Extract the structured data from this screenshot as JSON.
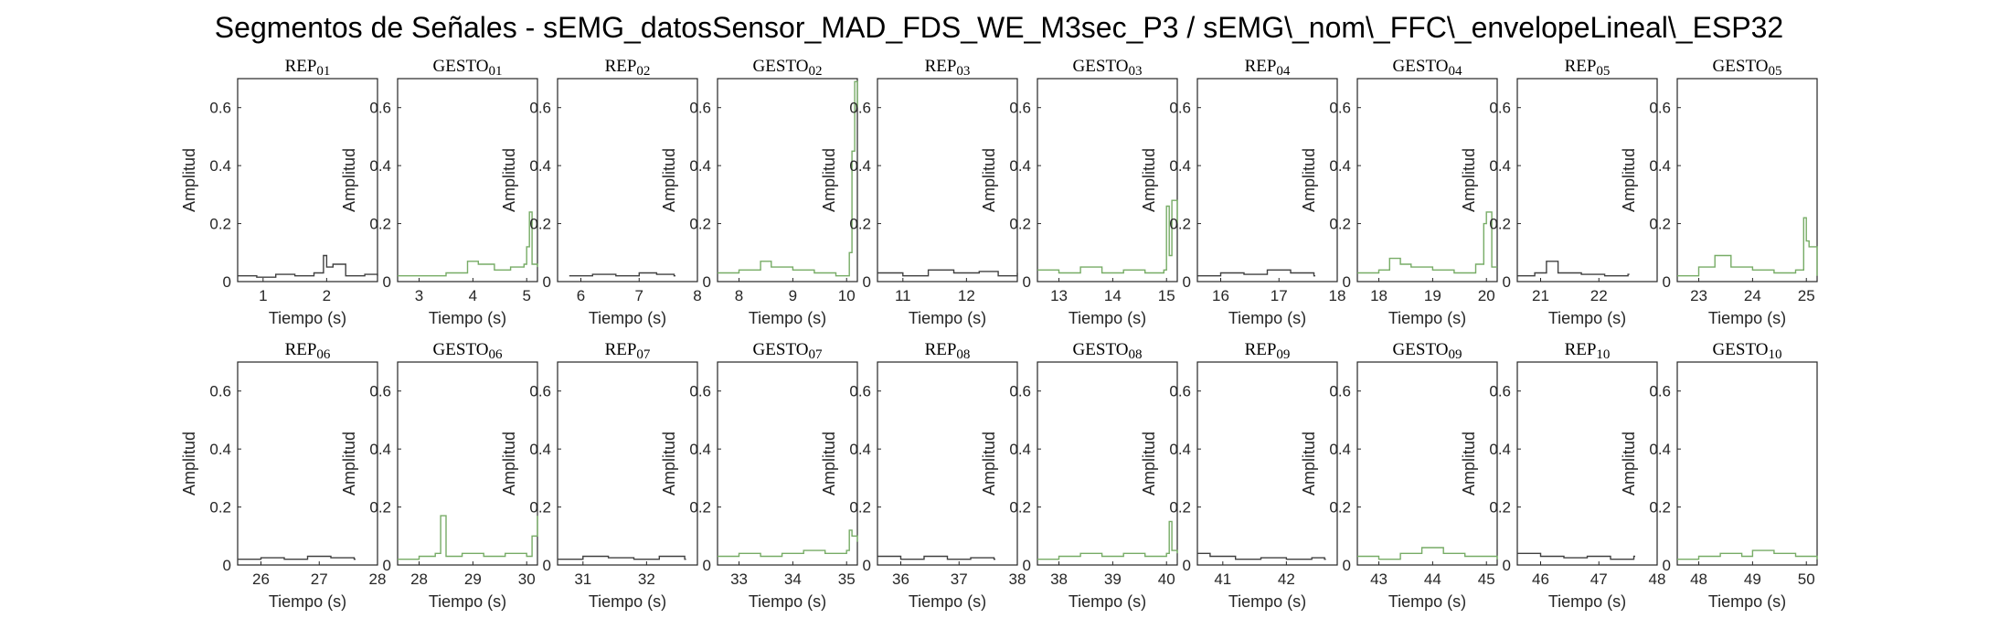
{
  "figure_title": "Segmentos de Señales - sEMG_datosSensor_MAD_FDS_WE_M3sec_P3 / sEMG\\_nom\\_FFC\\_envelopeLineal\\_ESP32",
  "colors": {
    "rep": "#404040",
    "gesto": "#77AC66",
    "axis": "#262626"
  },
  "chart_data": [
    {
      "type": "line",
      "title": "REP_01",
      "xlabel": "Tiempo (s)",
      "ylabel": "Amplitud",
      "xlim": [
        0.6,
        2.8
      ],
      "ylim": [
        0,
        0.7
      ],
      "xticks": [
        "1",
        "2"
      ],
      "yticks": [
        "0",
        "0.2",
        "0.4",
        "0.6"
      ],
      "series": [
        {
          "kind": "rep",
          "x": [
            0.6,
            0.9,
            1.2,
            1.5,
            1.8,
            1.95,
            2.0,
            2.1,
            2.3,
            2.6,
            2.8
          ],
          "y": [
            0.02,
            0.015,
            0.025,
            0.02,
            0.03,
            0.09,
            0.05,
            0.06,
            0.02,
            0.025,
            0.02
          ]
        }
      ]
    },
    {
      "type": "line",
      "title": "GESTO_01",
      "xlabel": "Tiempo (s)",
      "ylabel": "Amplitud",
      "xlim": [
        2.6,
        5.2
      ],
      "ylim": [
        0,
        0.7
      ],
      "xticks": [
        "3",
        "4",
        "5"
      ],
      "yticks": [
        "0",
        "0.2",
        "0.4",
        "0.6"
      ],
      "series": [
        {
          "kind": "gesto",
          "x": [
            2.6,
            3.0,
            3.5,
            3.9,
            4.1,
            4.4,
            4.7,
            4.95,
            5.0,
            5.05,
            5.1,
            5.2
          ],
          "y": [
            0.02,
            0.02,
            0.03,
            0.07,
            0.06,
            0.04,
            0.05,
            0.06,
            0.12,
            0.24,
            0.06,
            0.05
          ]
        }
      ]
    },
    {
      "type": "line",
      "title": "REP_02",
      "xlabel": "Tiempo (s)",
      "ylabel": "Amplitud",
      "xlim": [
        5.6,
        8.0
      ],
      "ylim": [
        0,
        0.7
      ],
      "xticks": [
        "6",
        "7",
        "8"
      ],
      "yticks": [
        "0",
        "0.2",
        "0.4",
        "0.6"
      ],
      "series": [
        {
          "kind": "rep",
          "x": [
            5.8,
            6.2,
            6.6,
            7.0,
            7.3,
            7.6
          ],
          "y": [
            0.02,
            0.025,
            0.02,
            0.03,
            0.025,
            0.02
          ]
        }
      ]
    },
    {
      "type": "line",
      "title": "GESTO_02",
      "xlabel": "Tiempo (s)",
      "ylabel": "Amplitud",
      "xlim": [
        7.6,
        10.2
      ],
      "ylim": [
        0,
        0.7
      ],
      "xticks": [
        "8",
        "9",
        "10"
      ],
      "yticks": [
        "0",
        "0.2",
        "0.4",
        "0.6"
      ],
      "series": [
        {
          "kind": "gesto",
          "x": [
            7.6,
            8.0,
            8.4,
            8.6,
            9.0,
            9.4,
            9.8,
            10.05,
            10.1,
            10.15,
            10.2
          ],
          "y": [
            0.03,
            0.04,
            0.07,
            0.05,
            0.04,
            0.03,
            0.02,
            0.1,
            0.45,
            0.69,
            0.6
          ]
        }
      ]
    },
    {
      "type": "line",
      "title": "REP_03",
      "xlabel": "Tiempo (s)",
      "ylabel": "Amplitud",
      "xlim": [
        10.6,
        12.8
      ],
      "ylim": [
        0,
        0.7
      ],
      "xticks": [
        "11",
        "12"
      ],
      "yticks": [
        "0",
        "0.2",
        "0.4",
        "0.6"
      ],
      "series": [
        {
          "kind": "rep",
          "x": [
            10.6,
            11.0,
            11.4,
            11.8,
            12.2,
            12.5,
            12.8
          ],
          "y": [
            0.03,
            0.02,
            0.04,
            0.03,
            0.035,
            0.02,
            0.03
          ]
        }
      ]
    },
    {
      "type": "line",
      "title": "GESTO_03",
      "xlabel": "Tiempo (s)",
      "ylabel": "Amplitud",
      "xlim": [
        12.6,
        15.2
      ],
      "ylim": [
        0,
        0.7
      ],
      "xticks": [
        "13",
        "14",
        "15"
      ],
      "yticks": [
        "0",
        "0.2",
        "0.4",
        "0.6"
      ],
      "series": [
        {
          "kind": "gesto",
          "x": [
            12.6,
            13.0,
            13.4,
            13.8,
            14.2,
            14.6,
            14.95,
            15.0,
            15.05,
            15.1,
            15.2
          ],
          "y": [
            0.04,
            0.03,
            0.05,
            0.03,
            0.04,
            0.03,
            0.04,
            0.26,
            0.09,
            0.28,
            0.2
          ]
        }
      ]
    },
    {
      "type": "line",
      "title": "REP_04",
      "xlabel": "Tiempo (s)",
      "ylabel": "Amplitud",
      "xlim": [
        15.6,
        18.0
      ],
      "ylim": [
        0,
        0.7
      ],
      "xticks": [
        "16",
        "17",
        "18"
      ],
      "yticks": [
        "0",
        "0.2",
        "0.4",
        "0.6"
      ],
      "series": [
        {
          "kind": "rep",
          "x": [
            15.6,
            16.0,
            16.4,
            16.8,
            17.2,
            17.6
          ],
          "y": [
            0.02,
            0.03,
            0.025,
            0.04,
            0.03,
            0.02
          ]
        }
      ]
    },
    {
      "type": "line",
      "title": "GESTO_04",
      "xlabel": "Tiempo (s)",
      "ylabel": "Amplitud",
      "xlim": [
        17.6,
        20.2
      ],
      "ylim": [
        0,
        0.7
      ],
      "xticks": [
        "18",
        "19",
        "20"
      ],
      "yticks": [
        "0",
        "0.2",
        "0.4",
        "0.6"
      ],
      "series": [
        {
          "kind": "gesto",
          "x": [
            17.6,
            18.0,
            18.2,
            18.4,
            18.6,
            19.0,
            19.4,
            19.8,
            19.95,
            20.0,
            20.1,
            20.2
          ],
          "y": [
            0.03,
            0.04,
            0.08,
            0.06,
            0.05,
            0.04,
            0.03,
            0.06,
            0.2,
            0.24,
            0.05,
            0.05
          ]
        }
      ]
    },
    {
      "type": "line",
      "title": "REP_05",
      "xlabel": "Tiempo (s)",
      "ylabel": "Amplitud",
      "xlim": [
        20.6,
        23.0
      ],
      "ylim": [
        0,
        0.7
      ],
      "xticks": [
        "21",
        "22"
      ],
      "yticks": [
        "0",
        "0.2",
        "0.4",
        "0.6"
      ],
      "series": [
        {
          "kind": "rep",
          "x": [
            20.6,
            20.9,
            21.1,
            21.3,
            21.7,
            22.1,
            22.5
          ],
          "y": [
            0.02,
            0.03,
            0.07,
            0.03,
            0.025,
            0.02,
            0.025
          ]
        }
      ]
    },
    {
      "type": "line",
      "title": "GESTO_05",
      "xlabel": "Tiempo (s)",
      "ylabel": "Amplitud",
      "xlim": [
        22.6,
        25.2
      ],
      "ylim": [
        0,
        0.7
      ],
      "xticks": [
        "23",
        "24",
        "25"
      ],
      "yticks": [
        "0",
        "0.2",
        "0.4",
        "0.6"
      ],
      "series": [
        {
          "kind": "gesto",
          "x": [
            22.6,
            23.0,
            23.3,
            23.6,
            24.0,
            24.4,
            24.8,
            24.95,
            25.0,
            25.05,
            25.2
          ],
          "y": [
            0.02,
            0.05,
            0.09,
            0.05,
            0.04,
            0.03,
            0.04,
            0.22,
            0.14,
            0.12,
            0.02
          ]
        }
      ]
    },
    {
      "type": "line",
      "title": "REP_06",
      "xlabel": "Tiempo (s)",
      "ylabel": "Amplitud",
      "xlim": [
        25.6,
        28.0
      ],
      "ylim": [
        0,
        0.7
      ],
      "xticks": [
        "26",
        "27",
        "28"
      ],
      "yticks": [
        "0",
        "0.2",
        "0.4",
        "0.6"
      ],
      "series": [
        {
          "kind": "rep",
          "x": [
            25.6,
            26.0,
            26.4,
            26.8,
            27.2,
            27.6
          ],
          "y": [
            0.02,
            0.025,
            0.02,
            0.03,
            0.025,
            0.02
          ]
        }
      ]
    },
    {
      "type": "line",
      "title": "GESTO_06",
      "xlabel": "Tiempo (s)",
      "ylabel": "Amplitud",
      "xlim": [
        27.6,
        30.2
      ],
      "ylim": [
        0,
        0.7
      ],
      "xticks": [
        "28",
        "29",
        "30"
      ],
      "yticks": [
        "0",
        "0.2",
        "0.4",
        "0.6"
      ],
      "series": [
        {
          "kind": "gesto",
          "x": [
            27.6,
            28.0,
            28.3,
            28.4,
            28.5,
            28.8,
            29.2,
            29.6,
            30.0,
            30.1,
            30.2
          ],
          "y": [
            0.02,
            0.03,
            0.04,
            0.17,
            0.03,
            0.04,
            0.03,
            0.04,
            0.03,
            0.1,
            0.17
          ]
        }
      ]
    },
    {
      "type": "line",
      "title": "REP_07",
      "xlabel": "Tiempo (s)",
      "ylabel": "Amplitud",
      "xlim": [
        30.6,
        32.8
      ],
      "ylim": [
        0,
        0.7
      ],
      "xticks": [
        "31",
        "32"
      ],
      "yticks": [
        "0",
        "0.2",
        "0.4",
        "0.6"
      ],
      "series": [
        {
          "kind": "rep",
          "x": [
            30.6,
            31.0,
            31.4,
            31.8,
            32.2,
            32.6
          ],
          "y": [
            0.02,
            0.03,
            0.025,
            0.02,
            0.03,
            0.02
          ]
        }
      ]
    },
    {
      "type": "line",
      "title": "GESTO_07",
      "xlabel": "Tiempo (s)",
      "ylabel": "Amplitud",
      "xlim": [
        32.6,
        35.2
      ],
      "ylim": [
        0,
        0.7
      ],
      "xticks": [
        "33",
        "34",
        "35"
      ],
      "yticks": [
        "0",
        "0.2",
        "0.4",
        "0.6"
      ],
      "series": [
        {
          "kind": "gesto",
          "x": [
            32.6,
            33.0,
            33.4,
            33.8,
            34.2,
            34.6,
            35.0,
            35.05,
            35.1,
            35.2
          ],
          "y": [
            0.03,
            0.04,
            0.03,
            0.04,
            0.05,
            0.04,
            0.05,
            0.12,
            0.1,
            0.08
          ]
        }
      ]
    },
    {
      "type": "line",
      "title": "REP_08",
      "xlabel": "Tiempo (s)",
      "ylabel": "Amplitud",
      "xlim": [
        35.6,
        38.0
      ],
      "ylim": [
        0,
        0.7
      ],
      "xticks": [
        "36",
        "37",
        "38"
      ],
      "yticks": [
        "0",
        "0.2",
        "0.4",
        "0.6"
      ],
      "series": [
        {
          "kind": "rep",
          "x": [
            35.6,
            36.0,
            36.4,
            36.8,
            37.2,
            37.6
          ],
          "y": [
            0.03,
            0.02,
            0.03,
            0.02,
            0.025,
            0.02
          ]
        }
      ]
    },
    {
      "type": "line",
      "title": "GESTO_08",
      "xlabel": "Tiempo (s)",
      "ylabel": "Amplitud",
      "xlim": [
        37.6,
        40.2
      ],
      "ylim": [
        0,
        0.7
      ],
      "xticks": [
        "38",
        "39",
        "40"
      ],
      "yticks": [
        "0",
        "0.2",
        "0.4",
        "0.6"
      ],
      "series": [
        {
          "kind": "gesto",
          "x": [
            37.6,
            38.0,
            38.4,
            38.8,
            39.2,
            39.6,
            40.0,
            40.05,
            40.1,
            40.2
          ],
          "y": [
            0.02,
            0.03,
            0.04,
            0.03,
            0.04,
            0.03,
            0.04,
            0.15,
            0.05,
            0.04
          ]
        }
      ]
    },
    {
      "type": "line",
      "title": "REP_09",
      "xlabel": "Tiempo (s)",
      "ylabel": "Amplitud",
      "xlim": [
        40.6,
        42.8
      ],
      "ylim": [
        0,
        0.7
      ],
      "xticks": [
        "41",
        "42"
      ],
      "yticks": [
        "0",
        "0.2",
        "0.4",
        "0.6"
      ],
      "series": [
        {
          "kind": "rep",
          "x": [
            40.6,
            40.8,
            41.2,
            41.6,
            42.0,
            42.4,
            42.6
          ],
          "y": [
            0.04,
            0.03,
            0.02,
            0.025,
            0.02,
            0.025,
            0.02
          ]
        }
      ]
    },
    {
      "type": "line",
      "title": "GESTO_09",
      "xlabel": "Tiempo (s)",
      "ylabel": "Amplitud",
      "xlim": [
        42.6,
        45.2
      ],
      "ylim": [
        0,
        0.7
      ],
      "xticks": [
        "43",
        "44",
        "45"
      ],
      "yticks": [
        "0",
        "0.2",
        "0.4",
        "0.6"
      ],
      "series": [
        {
          "kind": "gesto",
          "x": [
            42.6,
            43.0,
            43.4,
            43.8,
            44.2,
            44.6,
            45.0,
            45.2
          ],
          "y": [
            0.03,
            0.02,
            0.04,
            0.06,
            0.04,
            0.03,
            0.03,
            0.02
          ]
        }
      ]
    },
    {
      "type": "line",
      "title": "REP_10",
      "xlabel": "Tiempo (s)",
      "ylabel": "Amplitud",
      "xlim": [
        45.6,
        48.0
      ],
      "ylim": [
        0,
        0.7
      ],
      "xticks": [
        "46",
        "47",
        "48"
      ],
      "yticks": [
        "0",
        "0.2",
        "0.4",
        "0.6"
      ],
      "series": [
        {
          "kind": "rep",
          "x": [
            45.6,
            46.0,
            46.4,
            46.8,
            47.2,
            47.6
          ],
          "y": [
            0.04,
            0.03,
            0.025,
            0.03,
            0.02,
            0.03
          ]
        }
      ]
    },
    {
      "type": "line",
      "title": "GESTO_10",
      "xlabel": "Tiempo (s)",
      "ylabel": "Amplitud",
      "xlim": [
        47.6,
        50.2
      ],
      "ylim": [
        0,
        0.7
      ],
      "xticks": [
        "48",
        "49",
        "50"
      ],
      "yticks": [
        "0",
        "0.2",
        "0.4",
        "0.6"
      ],
      "series": [
        {
          "kind": "gesto",
          "x": [
            47.6,
            48.0,
            48.4,
            48.8,
            49.0,
            49.4,
            49.8,
            50.2
          ],
          "y": [
            0.02,
            0.03,
            0.04,
            0.03,
            0.05,
            0.04,
            0.03,
            0.02
          ]
        }
      ]
    }
  ]
}
